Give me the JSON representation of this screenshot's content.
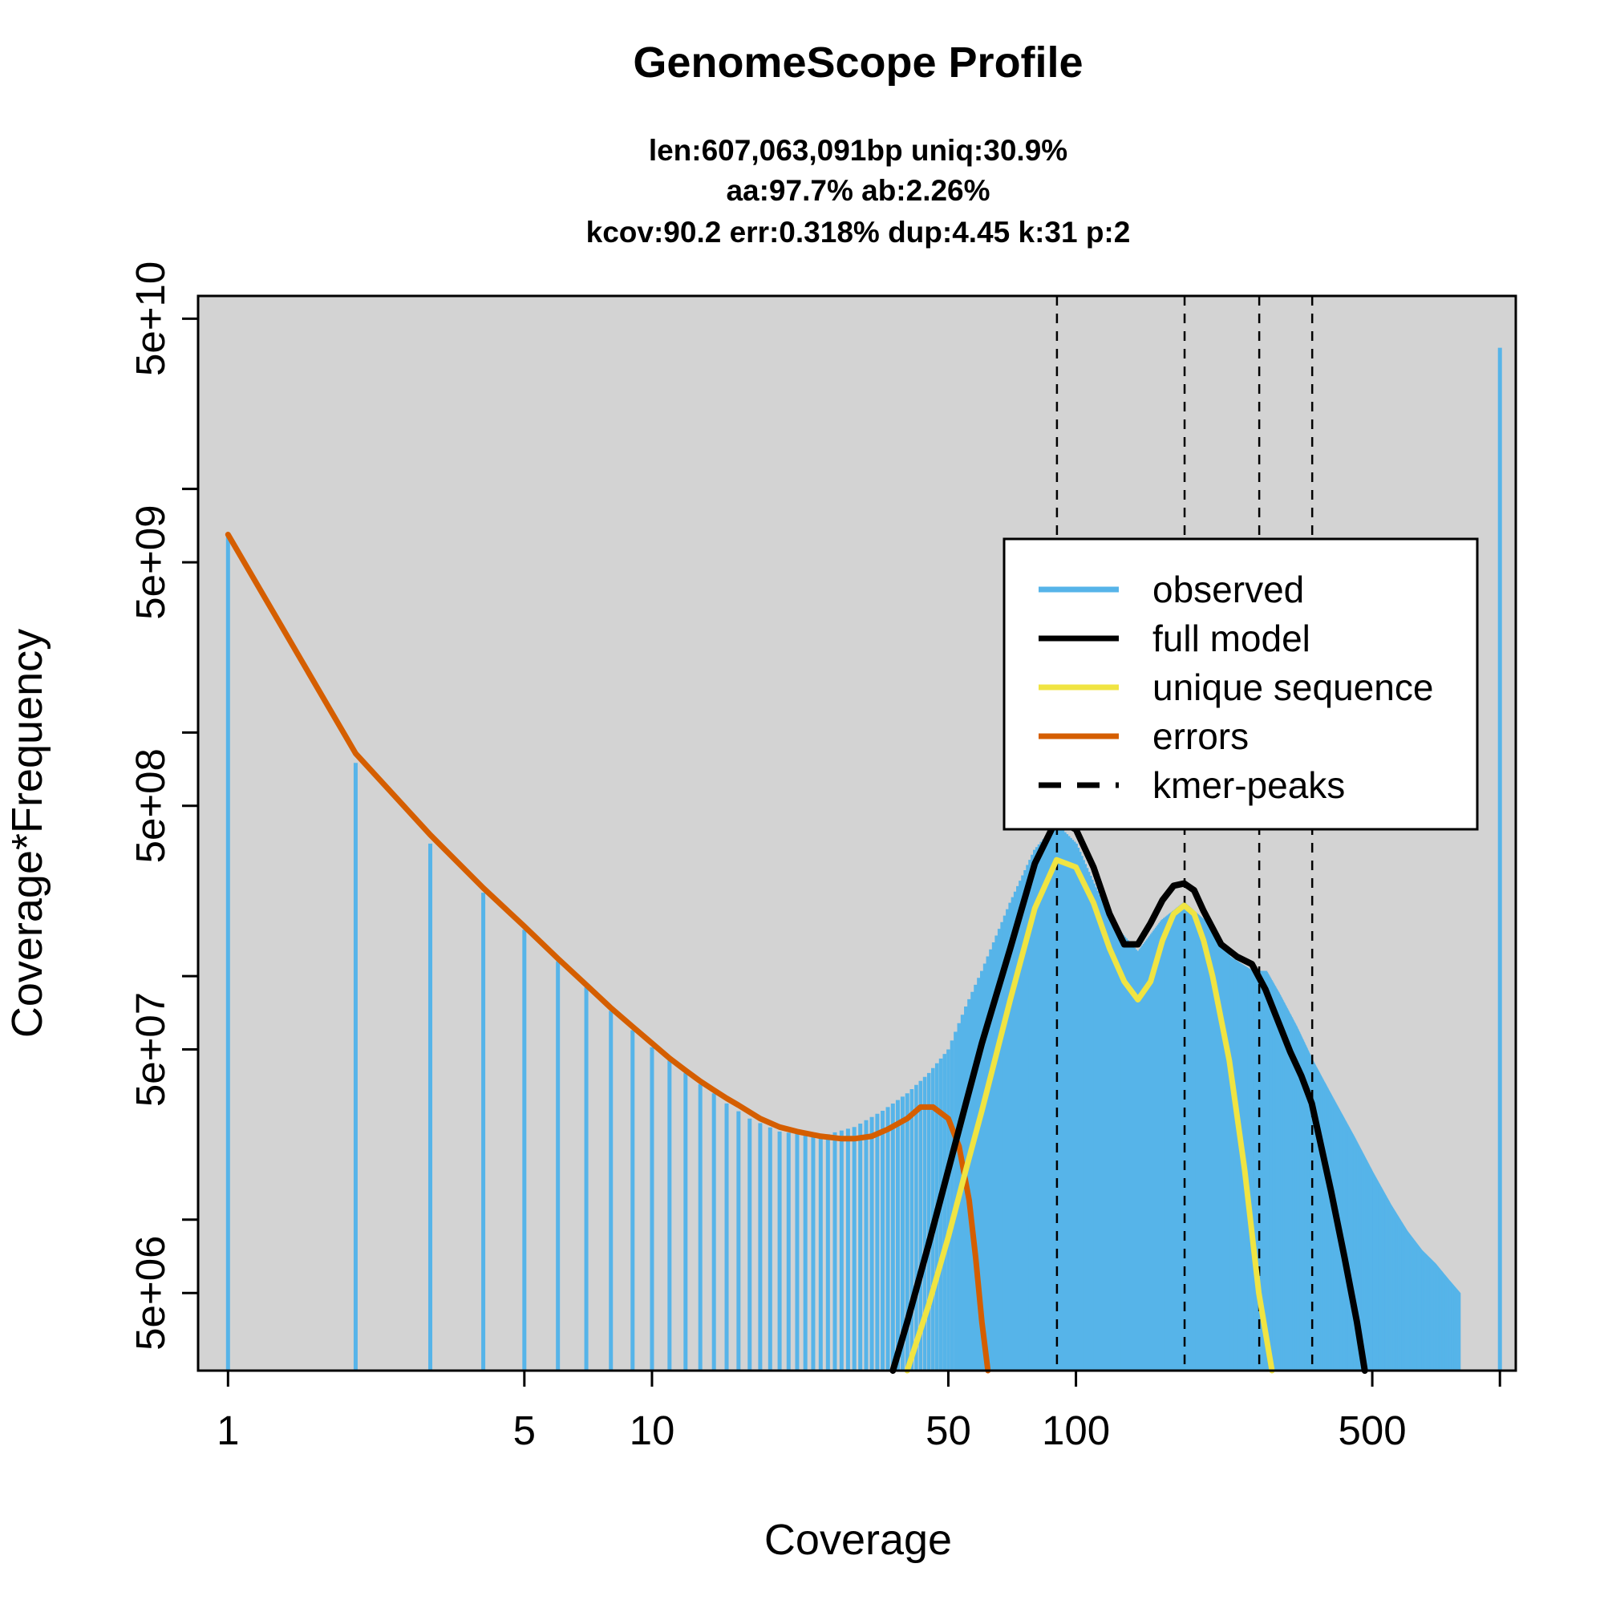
{
  "chart_data": {
    "type": "line",
    "title": "GenomeScope Profile",
    "subtitle_lines": [
      "len:607,063,091bp uniq:30.9%",
      "aa:97.7% ab:2.26%",
      "kcov:90.2 err:0.318%  dup:4.45  k:31 p:2"
    ],
    "xlabel": "Coverage",
    "ylabel": "Coverage*Frequency",
    "x_scale": "log",
    "y_scale": "log",
    "xlim": [
      0.85,
      1090
    ],
    "ylim": [
      2400000.0,
      62000000000.0
    ],
    "x_ticks": [
      1,
      5,
      10,
      50,
      100,
      500,
      1000
    ],
    "x_tick_labels": [
      "1",
      "5",
      "10",
      "50",
      "100",
      "500",
      ""
    ],
    "y_ticks": [
      5000000.0,
      10000000.0,
      50000000.0,
      100000000.0,
      500000000.0,
      1000000000.0,
      5000000000.0,
      10000000000.0,
      50000000000.0
    ],
    "y_tick_labels": [
      "5e+06",
      "",
      "5e+07",
      "",
      "5e+08",
      "",
      "5e+09",
      "",
      "5e+10"
    ],
    "background_color": "#d3d3d3",
    "kmer_peaks": [
      90.2,
      180.4,
      270.6,
      360.8
    ],
    "legend": {
      "placement": "top-right",
      "items": [
        {
          "label": "observed",
          "color": "#56b4e9",
          "style": "solid"
        },
        {
          "label": "full model",
          "color": "#000000",
          "style": "solid"
        },
        {
          "label": "unique sequence",
          "color": "#f0e442",
          "style": "solid"
        },
        {
          "label": "errors",
          "color": "#d55e00",
          "style": "solid"
        },
        {
          "label": "kmer-peaks",
          "color": "#000000",
          "style": "dashed"
        }
      ]
    },
    "series": [
      {
        "name": "observed",
        "color": "#56b4e9",
        "kind": "histogram",
        "x": [
          1,
          2,
          3,
          4,
          5,
          6,
          7,
          8,
          9,
          10,
          11,
          12,
          13,
          14,
          15,
          17,
          20,
          25,
          30,
          35,
          40,
          45,
          50,
          55,
          60,
          70,
          80,
          90,
          100,
          120,
          140,
          160,
          180,
          200,
          230,
          260,
          280,
          300,
          330,
          360,
          400,
          450,
          500,
          550,
          600,
          650,
          700,
          750,
          800,
          1000
        ],
        "y": [
          6500000000.0,
          750000000.0,
          350000000.0,
          220000000.0,
          155000000.0,
          115000000.0,
          90000000.0,
          72000000.0,
          60000000.0,
          51000000.0,
          45000000.0,
          40000000.0,
          36000000.0,
          33000000.0,
          30000000.0,
          26000000.0,
          23000000.0,
          22000000.0,
          24000000.0,
          28000000.0,
          33000000.0,
          40000000.0,
          50000000.0,
          75000000.0,
          105000000.0,
          200000000.0,
          330000000.0,
          420000000.0,
          350000000.0,
          170000000.0,
          125000000.0,
          170000000.0,
          200000000.0,
          170000000.0,
          120000000.0,
          105000000.0,
          105000000.0,
          85000000.0,
          62000000.0,
          45000000.0,
          32000000.0,
          22000000.0,
          15500000.0,
          11500000.0,
          9000000.0,
          7500000.0,
          6600000.0,
          5700000.0,
          5000000.0,
          38000000000.0
        ]
      },
      {
        "name": "full model",
        "color": "#000000",
        "x": [
          37,
          40,
          45,
          50,
          55,
          60,
          70,
          80,
          90,
          100,
          110,
          120,
          130,
          140,
          150,
          160,
          170,
          180,
          190,
          200,
          220,
          240,
          260,
          280,
          300,
          320,
          340,
          360,
          400,
          430,
          460,
          480
        ],
        "y": [
          2400000.0,
          3800000.0,
          8000000.0,
          16000000.0,
          30000000.0,
          53000000.0,
          130000000.0,
          290000000.0,
          440000000.0,
          400000000.0,
          280000000.0,
          180000000.0,
          135000000.0,
          135000000.0,
          165000000.0,
          205000000.0,
          235000000.0,
          240000000.0,
          225000000.0,
          185000000.0,
          135000000.0,
          120000000.0,
          112000000.0,
          88000000.0,
          65000000.0,
          49000000.0,
          39000000.0,
          30000000.0,
          13000000.0,
          7000000.0,
          3800000.0,
          2400000.0
        ]
      },
      {
        "name": "unique sequence",
        "color": "#f0e442",
        "x": [
          40,
          45,
          50,
          55,
          60,
          70,
          80,
          90,
          100,
          110,
          120,
          130,
          140,
          150,
          160,
          170,
          180,
          190,
          200,
          210,
          230,
          250,
          270,
          290
        ],
        "y": [
          2400000.0,
          4500000.0,
          8500000.0,
          16000000.0,
          28000000.0,
          80000000.0,
          190000000.0,
          300000000.0,
          280000000.0,
          200000000.0,
          130000000.0,
          95000000.0,
          80000000.0,
          95000000.0,
          140000000.0,
          180000000.0,
          195000000.0,
          180000000.0,
          140000000.0,
          100000000.0,
          45000000.0,
          16000000.0,
          5000000.0,
          2400000.0
        ]
      },
      {
        "name": "errors",
        "color": "#d55e00",
        "x": [
          1,
          2,
          3,
          4,
          5,
          6,
          7,
          8,
          9,
          10,
          11,
          12,
          13,
          14,
          15,
          16,
          18,
          20,
          22,
          25,
          28,
          30,
          33,
          36,
          40,
          43,
          46,
          50,
          53,
          56,
          58,
          60,
          62
        ],
        "y": [
          6500000000.0,
          820000000.0,
          380000000.0,
          230000000.0,
          160000000.0,
          118000000.0,
          92000000.0,
          74000000.0,
          62000000.0,
          53000000.0,
          46000000.0,
          41000000.0,
          37000000.0,
          34000000.0,
          31500000.0,
          29500000.0,
          26000000.0,
          24000000.0,
          23000000.0,
          22000000.0,
          21500000.0,
          21500000.0,
          22000000.0,
          23500000.0,
          26000000.0,
          29000000.0,
          29000000.0,
          26000000.0,
          20000000.0,
          12000000.0,
          7000000.0,
          3800000.0,
          2400000.0
        ]
      }
    ]
  }
}
